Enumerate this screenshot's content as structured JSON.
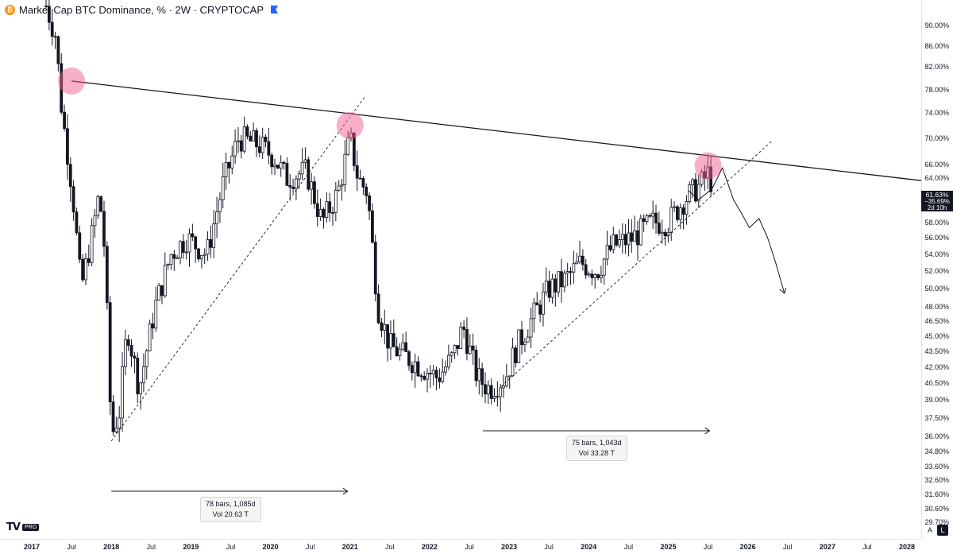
{
  "header": {
    "title": "Market Cap BTC Dominance, % · 2W · CRYPTOCAP",
    "btc_icon_label": "₿",
    "scale_unit": "%"
  },
  "chart_data": {
    "type": "candlestick",
    "title": "Market Cap BTC Dominance, %",
    "interval": "2W",
    "source": "CRYPTOCAP",
    "y_scale": "log",
    "ylim": [
      29.5,
      95
    ],
    "xlim": [
      2017.0,
      2028.2
    ],
    "y_ticks": [
      "90.00%",
      "86.00%",
      "82.00%",
      "78.00%",
      "74.00%",
      "70.00%",
      "66.00%",
      "64.00%",
      "58.00%",
      "56.00%",
      "54.00%",
      "52.00%",
      "50.00%",
      "48.00%",
      "46.50%",
      "45.00%",
      "43.50%",
      "42.00%",
      "40.50%",
      "39.00%",
      "37.50%",
      "36.00%",
      "34.80%",
      "33.60%",
      "32.60%",
      "31.60%",
      "30.60%",
      "29.70%"
    ],
    "y_tick_values": [
      90,
      86,
      82,
      78,
      74,
      70,
      66,
      64,
      58,
      56,
      54,
      52,
      50,
      48,
      46.5,
      45,
      43.5,
      42,
      40.5,
      39,
      37.5,
      36,
      34.8,
      33.6,
      32.6,
      31.6,
      30.6,
      29.7
    ],
    "x_ticks": [
      {
        "label": "2017",
        "t": 2017.0,
        "year": true
      },
      {
        "label": "Jul",
        "t": 2017.5
      },
      {
        "label": "2018",
        "t": 2018.0,
        "year": true
      },
      {
        "label": "Jul",
        "t": 2018.5
      },
      {
        "label": "2019",
        "t": 2019.0,
        "year": true
      },
      {
        "label": "Jul",
        "t": 2019.5
      },
      {
        "label": "2020",
        "t": 2020.0,
        "year": true
      },
      {
        "label": "Jul",
        "t": 2020.5
      },
      {
        "label": "2021",
        "t": 2021.0,
        "year": true
      },
      {
        "label": "Jul",
        "t": 2021.5
      },
      {
        "label": "2022",
        "t": 2022.0,
        "year": true
      },
      {
        "label": "Jul",
        "t": 2022.5
      },
      {
        "label": "2023",
        "t": 2023.0,
        "year": true
      },
      {
        "label": "Jul",
        "t": 2023.5
      },
      {
        "label": "2024",
        "t": 2024.0,
        "year": true
      },
      {
        "label": "Jul",
        "t": 2024.5
      },
      {
        "label": "2025",
        "t": 2025.0,
        "year": true
      },
      {
        "label": "Jul",
        "t": 2025.5
      },
      {
        "label": "2026",
        "t": 2026.0,
        "year": true
      },
      {
        "label": "Jul",
        "t": 2026.5
      },
      {
        "label": "2027",
        "t": 2027.0,
        "year": true
      },
      {
        "label": "Jul",
        "t": 2027.5
      },
      {
        "label": "2028",
        "t": 2028.0,
        "year": true
      }
    ],
    "path_keypoints": [
      {
        "t": 2017.18,
        "v": 94
      },
      {
        "t": 2017.3,
        "v": 88
      },
      {
        "t": 2017.38,
        "v": 74
      },
      {
        "t": 2017.47,
        "v": 66
      },
      {
        "t": 2017.53,
        "v": 60
      },
      {
        "t": 2017.62,
        "v": 50
      },
      {
        "t": 2017.75,
        "v": 56
      },
      {
        "t": 2017.85,
        "v": 62
      },
      {
        "t": 2017.92,
        "v": 54
      },
      {
        "t": 2018.0,
        "v": 36
      },
      {
        "t": 2018.1,
        "v": 38
      },
      {
        "t": 2018.2,
        "v": 46
      },
      {
        "t": 2018.35,
        "v": 40
      },
      {
        "t": 2018.55,
        "v": 48
      },
      {
        "t": 2018.75,
        "v": 54
      },
      {
        "t": 2018.95,
        "v": 56
      },
      {
        "t": 2019.2,
        "v": 54
      },
      {
        "t": 2019.4,
        "v": 63
      },
      {
        "t": 2019.6,
        "v": 70
      },
      {
        "t": 2019.85,
        "v": 69
      },
      {
        "t": 2020.05,
        "v": 67
      },
      {
        "t": 2020.2,
        "v": 64
      },
      {
        "t": 2020.45,
        "v": 65
      },
      {
        "t": 2020.65,
        "v": 58
      },
      {
        "t": 2020.85,
        "v": 62
      },
      {
        "t": 2021.0,
        "v": 70
      },
      {
        "t": 2021.1,
        "v": 64
      },
      {
        "t": 2021.22,
        "v": 62
      },
      {
        "t": 2021.35,
        "v": 48
      },
      {
        "t": 2021.5,
        "v": 44
      },
      {
        "t": 2021.7,
        "v": 43
      },
      {
        "t": 2021.9,
        "v": 42
      },
      {
        "t": 2022.1,
        "v": 41
      },
      {
        "t": 2022.3,
        "v": 43
      },
      {
        "t": 2022.42,
        "v": 46
      },
      {
        "t": 2022.6,
        "v": 41
      },
      {
        "t": 2022.75,
        "v": 40
      },
      {
        "t": 2022.95,
        "v": 41
      },
      {
        "t": 2023.1,
        "v": 44
      },
      {
        "t": 2023.3,
        "v": 47
      },
      {
        "t": 2023.5,
        "v": 50
      },
      {
        "t": 2023.7,
        "v": 51
      },
      {
        "t": 2023.9,
        "v": 53
      },
      {
        "t": 2024.1,
        "v": 52
      },
      {
        "t": 2024.3,
        "v": 55
      },
      {
        "t": 2024.55,
        "v": 56
      },
      {
        "t": 2024.8,
        "v": 58
      },
      {
        "t": 2025.0,
        "v": 58
      },
      {
        "t": 2025.2,
        "v": 61
      },
      {
        "t": 2025.4,
        "v": 63
      },
      {
        "t": 2025.52,
        "v": 65
      },
      {
        "t": 2025.56,
        "v": 61.6
      }
    ],
    "current_value": "61.63%",
    "current_change": "−35.69%",
    "countdown": "2d 10h",
    "measurements": [
      {
        "bars_label": "78 bars, 1,085d",
        "vol_label": "Vol 20.63 T"
      },
      {
        "bars_label": "75 bars, 1,043d",
        "vol_label": "Vol 33.28 T"
      }
    ],
    "resistance_line": [
      {
        "t": 2017.5,
        "v": 79.5
      },
      {
        "t": 2028.3,
        "v": 63.5
      }
    ],
    "support_lines": [
      [
        {
          "t": 2018.0,
          "v": 35.6
        },
        {
          "t": 2021.2,
          "v": 77.0
        }
      ],
      [
        {
          "t": 2022.9,
          "v": 40.2
        },
        {
          "t": 2026.3,
          "v": 69.5
        }
      ]
    ],
    "highlight_circles": [
      {
        "t": 2017.5,
        "v": 79.5
      },
      {
        "t": 2021.0,
        "v": 72.0
      },
      {
        "t": 2025.5,
        "v": 65.8
      }
    ],
    "highlight_color": "#f06292",
    "candle_color": "#131722"
  },
  "logo": {
    "mark": "TV",
    "badge": "PRO"
  },
  "scale_modes": {
    "auto": "A",
    "log": "L"
  }
}
